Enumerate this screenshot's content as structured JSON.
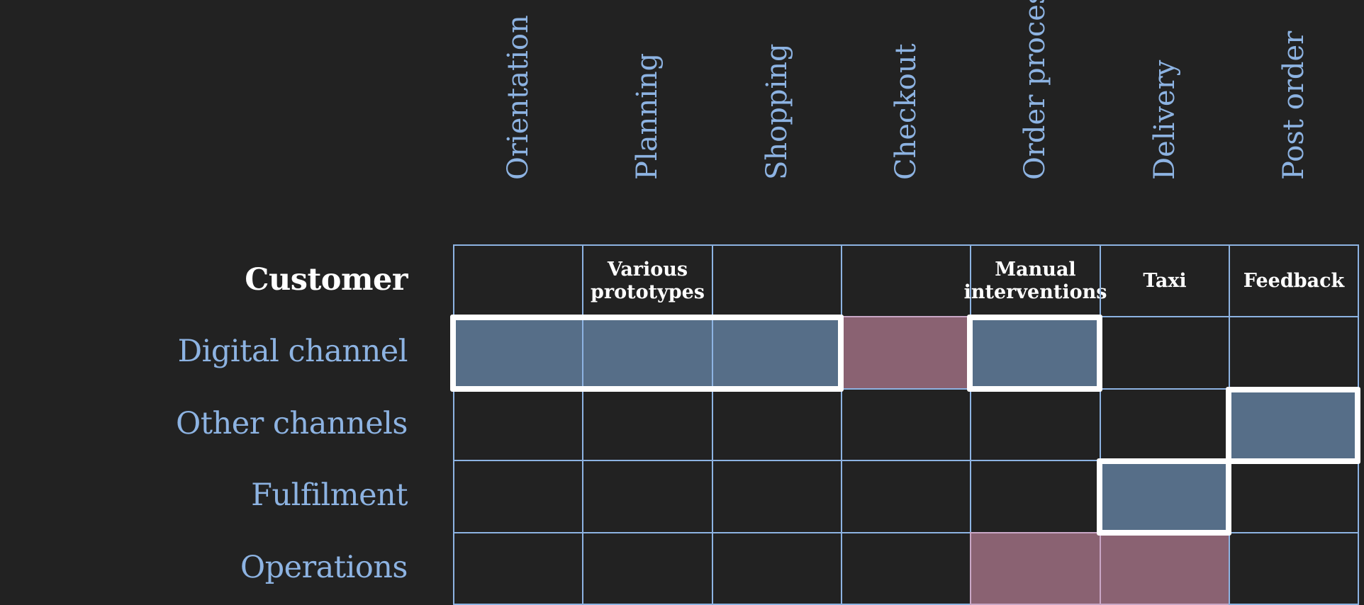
{
  "columns": [
    "Orientation",
    "Planning",
    "Shopping",
    "Checkout",
    "Order processing",
    "Delivery",
    "Post order"
  ],
  "rows": [
    "Customer",
    "Digital channel",
    "Other channels",
    "Fulfilment",
    "Operations"
  ],
  "customer_cells": [
    {
      "line1": "",
      "line2": ""
    },
    {
      "line1": "Various",
      "line2": "prototypes"
    },
    {
      "line1": "",
      "line2": ""
    },
    {
      "line1": "",
      "line2": ""
    },
    {
      "line1": "Manual",
      "line2": "interventions"
    },
    {
      "line1": "Taxi",
      "line2": ""
    },
    {
      "line1": "Feedback",
      "line2": ""
    }
  ],
  "cell_fills": {
    "Digital channel": [
      "blue",
      "blue",
      "blue",
      "pink",
      "blue",
      "none",
      "none"
    ],
    "Other channels": [
      "none",
      "none",
      "none",
      "none",
      "none",
      "none",
      "blue"
    ],
    "Fulfilment": [
      "none",
      "none",
      "none",
      "none",
      "none",
      "blue",
      "none"
    ],
    "Operations": [
      "none",
      "none",
      "none",
      "none",
      "pink",
      "pink",
      "none"
    ]
  },
  "colors": {
    "background": "#222222",
    "grid_line": "#8db3e2",
    "label_blue": "#8db3e2",
    "fill_blue": "#566e88",
    "fill_pink": "#8a6272",
    "highlight_outline": "#ffffff"
  }
}
